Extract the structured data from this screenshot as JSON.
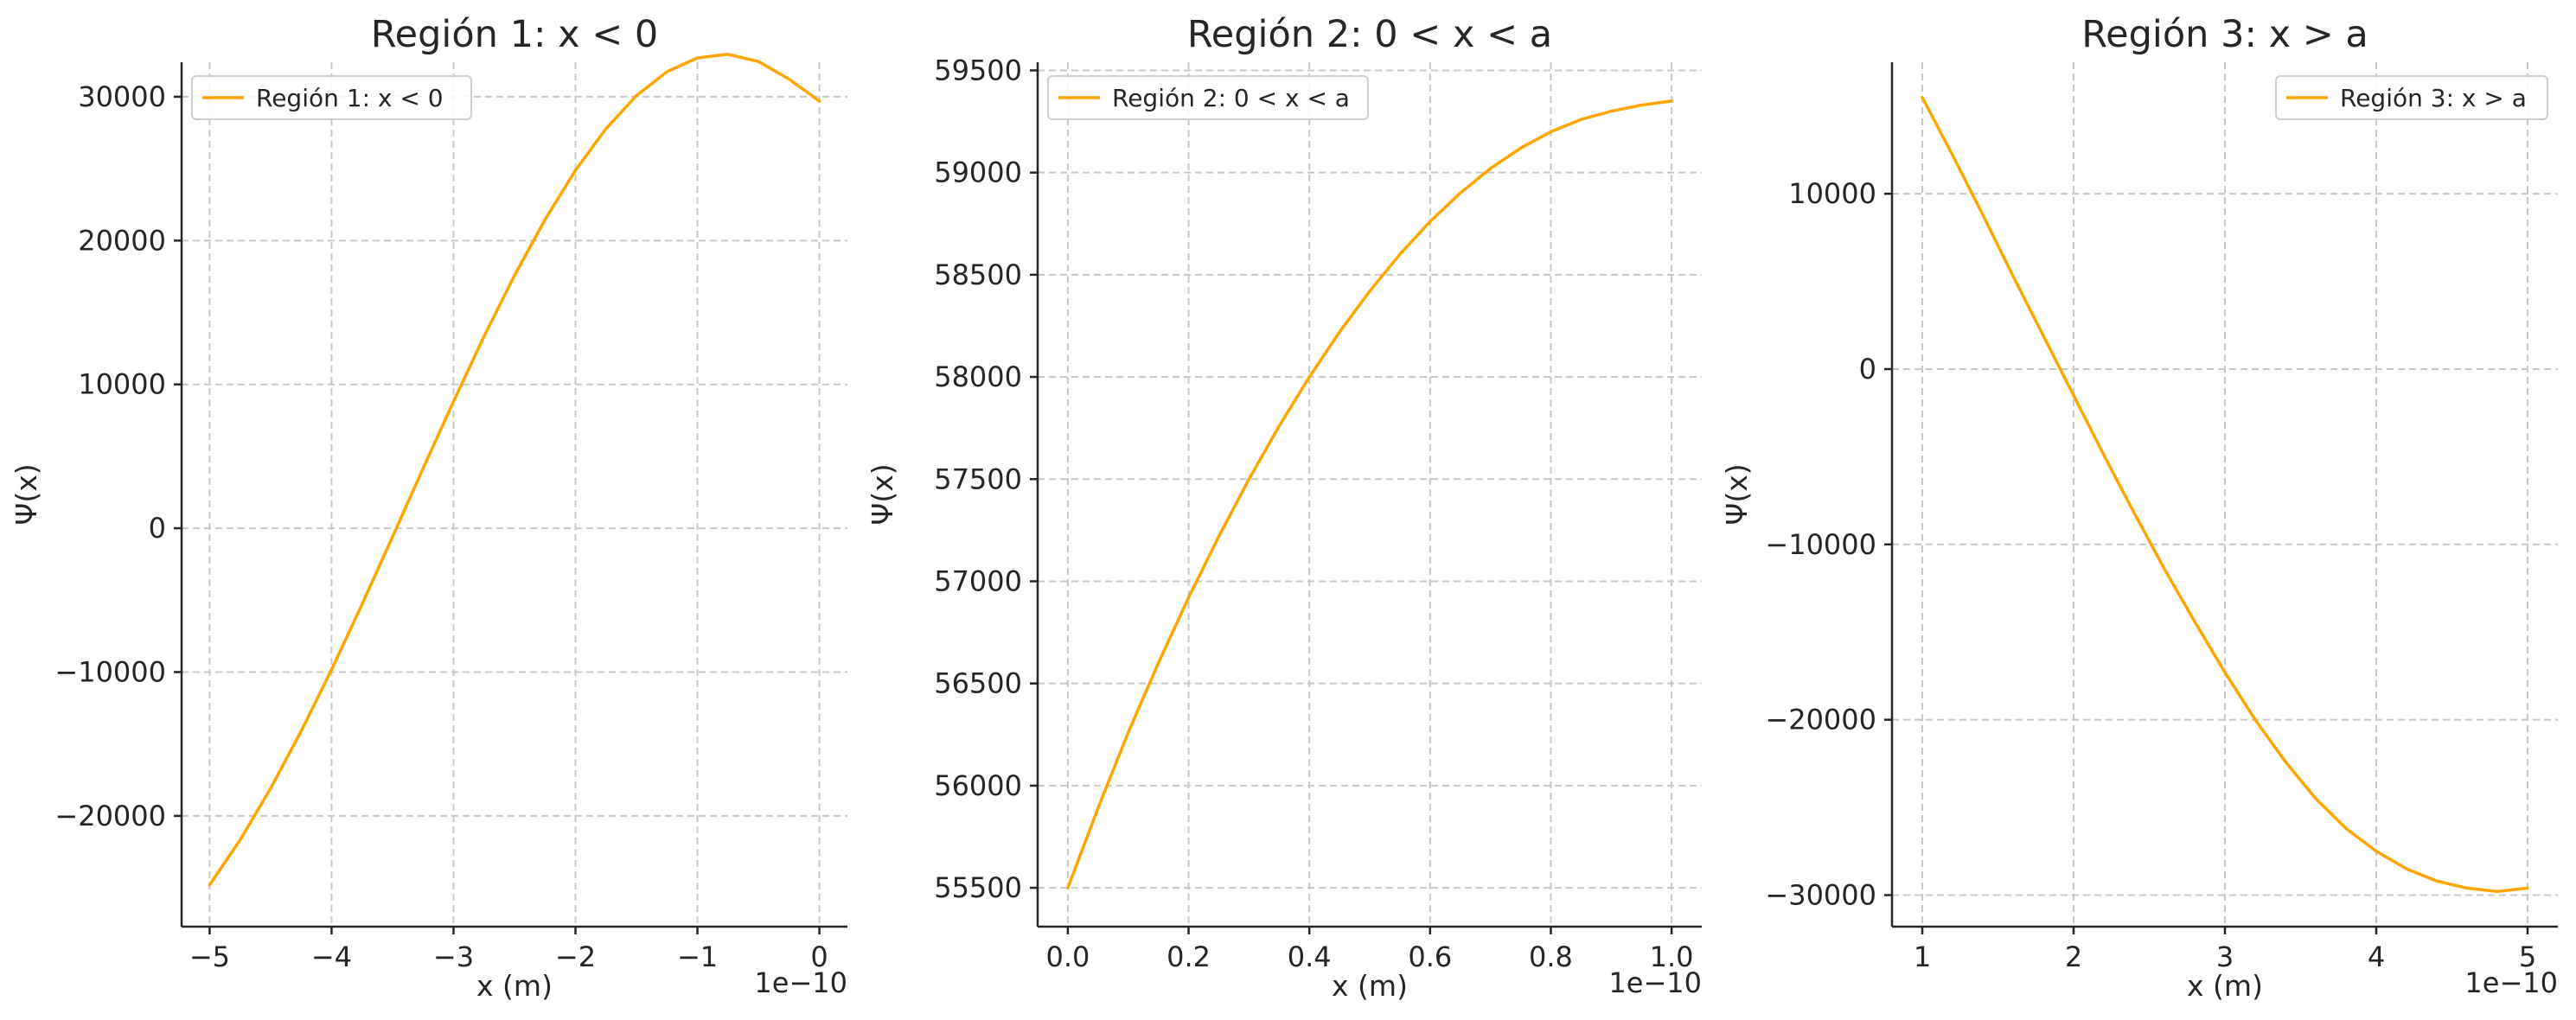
{
  "colors": {
    "line": "#FFA500",
    "grid": "#c8c8c8",
    "text": "#262626"
  },
  "chart_data": [
    {
      "type": "line",
      "title": "Región 1: x < 0",
      "xlabel": "x (m)",
      "ylabel": "Ψ(x)",
      "x_offset_label": "1e−10",
      "xlim": [
        -5.23,
        0.23
      ],
      "ylim": [
        -27700,
        32400
      ],
      "xticks": [
        -5,
        -4,
        -3,
        -2,
        -1,
        0
      ],
      "xtick_labels": [
        "−5",
        "−4",
        "−3",
        "−2",
        "−1",
        "0"
      ],
      "yticks": [
        -20000,
        -10000,
        0,
        10000,
        20000,
        30000
      ],
      "ytick_labels": [
        "−20000",
        "−10000",
        "0",
        "10000",
        "20000",
        "30000"
      ],
      "grid": true,
      "legend_position": "top-left",
      "series": [
        {
          "name": "Región 1: x < 0",
          "x": [
            -5.0,
            -4.75,
            -4.5,
            -4.25,
            -4.0,
            -3.75,
            -3.5,
            -3.25,
            -3.0,
            -2.75,
            -2.5,
            -2.25,
            -2.0,
            -1.75,
            -1.5,
            -1.25,
            -1.0,
            -0.75,
            -0.5,
            -0.25,
            0.0
          ],
          "y": [
            -24800,
            -21670,
            -18090,
            -14120,
            -9820,
            -5280,
            -590,
            4150,
            8820,
            13330,
            17580,
            21460,
            24880,
            27780,
            30080,
            31740,
            32700,
            32950,
            32450,
            31230,
            29700
          ]
        }
      ]
    },
    {
      "type": "line",
      "title": "Región 2: 0 < x < a",
      "xlabel": "x (m)",
      "ylabel": "Ψ(x)",
      "x_offset_label": "1e−10",
      "xlim": [
        -0.05,
        1.05
      ],
      "ylim": [
        55310,
        59540
      ],
      "xticks": [
        0.0,
        0.2,
        0.4,
        0.6,
        0.8,
        1.0
      ],
      "xtick_labels": [
        "0.0",
        "0.2",
        "0.4",
        "0.6",
        "0.8",
        "1.0"
      ],
      "yticks": [
        55500,
        56000,
        56500,
        57000,
        57500,
        58000,
        58500,
        59000,
        59500
      ],
      "ytick_labels": [
        "55500",
        "56000",
        "56500",
        "57000",
        "57500",
        "58000",
        "58500",
        "59000",
        "59500"
      ],
      "grid": true,
      "legend_position": "top-left",
      "series": [
        {
          "name": "Región 2: 0 < x < a",
          "x": [
            0.0,
            0.05,
            0.1,
            0.15,
            0.2,
            0.25,
            0.3,
            0.35,
            0.4,
            0.45,
            0.5,
            0.55,
            0.6,
            0.65,
            0.7,
            0.75,
            0.8,
            0.85,
            0.9,
            0.95,
            1.0
          ],
          "y": [
            55500,
            55890,
            56260,
            56600,
            56920,
            57220,
            57500,
            57760,
            58000,
            58220,
            58420,
            58600,
            58760,
            58900,
            59020,
            59120,
            59200,
            59260,
            59300,
            59330,
            59350
          ]
        }
      ]
    },
    {
      "type": "line",
      "title": "Región 3: x > a",
      "xlabel": "x (m)",
      "ylabel": "Ψ(x)",
      "x_offset_label": "1e−10",
      "xlim": [
        0.8,
        5.2
      ],
      "ylim": [
        -31800,
        17500
      ],
      "xticks": [
        1,
        2,
        3,
        4,
        5
      ],
      "xtick_labels": [
        "1",
        "2",
        "3",
        "4",
        "5"
      ],
      "yticks": [
        -30000,
        -20000,
        -10000,
        0,
        10000
      ],
      "ytick_labels": [
        "−30000",
        "−20000",
        "−10000",
        "0",
        "10000"
      ],
      "grid": true,
      "legend_position": "top-right",
      "series": [
        {
          "name": "Región 3: x > a",
          "x": [
            1.0,
            1.2,
            1.4,
            1.6,
            1.8,
            2.0,
            2.2,
            2.4,
            2.6,
            2.8,
            3.0,
            3.2,
            3.4,
            3.6,
            3.8,
            4.0,
            4.2,
            4.4,
            4.6,
            4.8,
            5.0
          ],
          "y": [
            15500,
            12200,
            8800,
            5300,
            1900,
            -1500,
            -4900,
            -8200,
            -11400,
            -14400,
            -17300,
            -20000,
            -22400,
            -24500,
            -26200,
            -27500,
            -28500,
            -29200,
            -29600,
            -29800,
            -29600
          ]
        }
      ]
    }
  ]
}
